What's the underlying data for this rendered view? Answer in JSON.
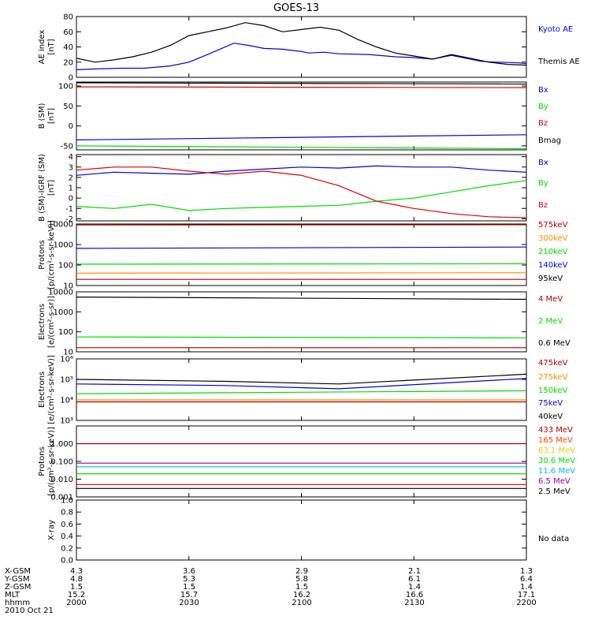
{
  "title": "GOES-13",
  "no_data_label": "No data",
  "orbit": {
    "row_labels": [
      "X-GSM",
      "Y-GSM",
      "Z-GSM",
      "MLT",
      "hhmm"
    ],
    "columns": [
      [
        "4.3",
        "4.8",
        "1.5",
        "15.2",
        "2000"
      ],
      [
        "3.6",
        "5.3",
        "1.5",
        "15.7",
        "2030"
      ],
      [
        "2.9",
        "5.8",
        "1.5",
        "16.2",
        "2100"
      ],
      [
        "2.1",
        "6.1",
        "1.4",
        "16.6",
        "2130"
      ],
      [
        "1.3",
        "6.4",
        "1.4",
        "17.1",
        "2200"
      ]
    ],
    "date": "2010 Oct 21"
  },
  "colors": {
    "black": "#000000",
    "blue": "#0000dd",
    "green": "#00dd00",
    "red": "#dd0000",
    "darkred": "#aa0000",
    "orange": "#ff8c00",
    "yellow": "#d8d800",
    "cyan": "#00b8ff",
    "purple": "#990099"
  },
  "chart_data": [
    {
      "type": "line",
      "id": "ae",
      "ylabel": "AE index\n[nT]",
      "ylim": [
        0,
        80
      ],
      "yticks": [
        "0",
        "20",
        "40",
        "60",
        "80"
      ],
      "yscale": "linear",
      "x_range": [
        "2000",
        "2200"
      ],
      "series": [
        {
          "name": "Kyoto AE",
          "color": "blue",
          "x": [
            0,
            5,
            12,
            18,
            25,
            30,
            35,
            42,
            46,
            50,
            55,
            60,
            62,
            66,
            70,
            78,
            85,
            90,
            95,
            100,
            105,
            108,
            112,
            118,
            120
          ],
          "y": [
            10,
            11,
            12,
            12,
            15,
            20,
            30,
            45,
            42,
            38,
            37,
            34,
            32,
            33,
            31,
            30,
            27,
            26,
            24,
            29,
            24,
            21,
            20,
            19,
            18
          ]
        },
        {
          "name": "Themis AE",
          "color": "black",
          "x": [
            0,
            5,
            10,
            15,
            20,
            25,
            30,
            35,
            40,
            45,
            50,
            55,
            60,
            65,
            70,
            75,
            80,
            85,
            90,
            95,
            100,
            105,
            110,
            115,
            120
          ],
          "y": [
            25,
            20,
            23,
            27,
            33,
            42,
            55,
            60,
            65,
            72,
            68,
            60,
            63,
            66,
            62,
            50,
            40,
            32,
            28,
            24,
            30,
            25,
            20,
            17,
            16
          ]
        }
      ]
    },
    {
      "type": "line",
      "id": "bsm",
      "ylabel": "B (SM)\n[nT]",
      "ylim": [
        -60,
        110
      ],
      "yticks": [
        "-50",
        "0",
        "50",
        "100"
      ],
      "yscale": "linear",
      "series": [
        {
          "name": "Bx",
          "color": "blue",
          "x": [
            0,
            120
          ],
          "y": [
            -35,
            -22
          ]
        },
        {
          "name": "By",
          "color": "green",
          "x": [
            0,
            120
          ],
          "y": [
            -50,
            -57
          ]
        },
        {
          "name": "Bz",
          "color": "red",
          "x": [
            0,
            120
          ],
          "y": [
            98,
            96
          ]
        },
        {
          "name": "Bmag",
          "color": "black",
          "x": [
            0,
            120
          ],
          "y": [
            108,
            105
          ]
        }
      ]
    },
    {
      "type": "line",
      "id": "bigrf",
      "ylabel": "B (SM)-IGRF (SM)\n[nT]",
      "ylim": [
        -2.2,
        4.2
      ],
      "yticks": [
        "-2",
        "-1",
        "0",
        "1",
        "2",
        "3",
        "4"
      ],
      "yscale": "linear",
      "series": [
        {
          "name": "Bx",
          "color": "blue",
          "x": [
            0,
            10,
            20,
            30,
            40,
            50,
            60,
            70,
            80,
            90,
            100,
            110,
            120
          ],
          "y": [
            2.2,
            2.5,
            2.4,
            2.3,
            2.6,
            2.8,
            3.0,
            2.9,
            3.1,
            3.0,
            3.0,
            2.7,
            2.5
          ]
        },
        {
          "name": "By",
          "color": "green",
          "x": [
            0,
            10,
            20,
            30,
            40,
            50,
            60,
            70,
            80,
            90,
            100,
            110,
            120
          ],
          "y": [
            -0.8,
            -1.0,
            -0.6,
            -1.2,
            -1.0,
            -0.9,
            -0.8,
            -0.7,
            -0.3,
            0.0,
            0.6,
            1.2,
            1.7
          ]
        },
        {
          "name": "Bz",
          "color": "red",
          "x": [
            0,
            10,
            20,
            30,
            40,
            50,
            60,
            70,
            80,
            90,
            100,
            110,
            120
          ],
          "y": [
            2.7,
            3.0,
            3.0,
            2.6,
            2.3,
            2.6,
            2.2,
            1.2,
            -0.3,
            -1.0,
            -1.5,
            -1.8,
            -1.9
          ]
        }
      ]
    },
    {
      "type": "line",
      "id": "protons",
      "ylabel": "Protons\n[p/(cm²-s-sr-keV)]",
      "ylim": [
        10,
        10000
      ],
      "yticks": [
        "10",
        "100",
        "1000",
        "10000"
      ],
      "yscale": "log",
      "series": [
        {
          "name": "575keV",
          "color": "darkred",
          "x": [
            0,
            120
          ],
          "y": [
            9000,
            9200
          ]
        },
        {
          "name": "300keV",
          "color": "orange",
          "x": [
            0,
            120
          ],
          "y": [
            40,
            42
          ]
        },
        {
          "name": "210keV",
          "color": "green",
          "x": [
            0,
            120
          ],
          "y": [
            110,
            115
          ]
        },
        {
          "name": "140keV",
          "color": "blue",
          "x": [
            0,
            120
          ],
          "y": [
            650,
            750
          ]
        },
        {
          "name": "95keV",
          "color": "darkred",
          "x": [
            0,
            120
          ],
          "y": [
            20,
            20
          ]
        }
      ]
    },
    {
      "type": "line",
      "id": "electrons1",
      "ylabel": "Electrons\n[e/(cm²-s-sr)]",
      "ylim": [
        10,
        10000
      ],
      "yticks": [
        "10",
        "100",
        "1000",
        "10000"
      ],
      "yscale": "log",
      "series": [
        {
          "name": "4 MeV",
          "color": "darkred",
          "x": [
            0,
            120
          ],
          "y": [
            16,
            16
          ]
        },
        {
          "name": "2 MeV",
          "color": "green",
          "x": [
            0,
            120
          ],
          "y": [
            55,
            50
          ]
        },
        {
          "name": "0.6 MeV",
          "color": "black",
          "x": [
            0,
            120
          ],
          "y": [
            5500,
            4200
          ]
        }
      ]
    },
    {
      "type": "line",
      "id": "electrons2",
      "ylabel": "Electrons\n[e/(cm²-s-sr-keV)]",
      "ylim": [
        1000,
        1000000
      ],
      "yticks": [
        "10³",
        "10⁴",
        "10⁵",
        "10⁶"
      ],
      "yscale": "log",
      "series": [
        {
          "name": "475keV",
          "color": "darkred",
          "x": [
            0,
            120
          ],
          "y": [
            8000,
            8000
          ]
        },
        {
          "name": "275keV",
          "color": "orange",
          "x": [
            0,
            120
          ],
          "y": [
            10000,
            10000
          ]
        },
        {
          "name": "150keV",
          "color": "green",
          "x": [
            0,
            120
          ],
          "y": [
            20000,
            28000
          ]
        },
        {
          "name": "75keV",
          "color": "blue",
          "x": [
            0,
            40,
            70,
            120
          ],
          "y": [
            60000,
            50000,
            35000,
            110000
          ]
        },
        {
          "name": "40keV",
          "color": "black",
          "x": [
            0,
            40,
            70,
            120
          ],
          "y": [
            100000,
            80000,
            60000,
            180000
          ]
        }
      ]
    },
    {
      "type": "line",
      "id": "protons2",
      "ylabel": "Protons\n[p/(cm²-s-sr-keV)]",
      "ylim": [
        0.001,
        10
      ],
      "yticks": [
        "0.001",
        "0.010",
        "0.100",
        "1.000"
      ],
      "yscale": "log",
      "series": [
        {
          "name": "433 MeV",
          "color": "darkred",
          "x": [
            0,
            120
          ],
          "y": [
            1.0,
            1.0
          ]
        },
        {
          "name": "165 MeV",
          "color": "red",
          "x": [
            0,
            120
          ],
          "y": [
            0.005,
            0.005
          ]
        },
        {
          "name": "63.1 MeV",
          "color": "yellow",
          "x": [
            0,
            120
          ],
          "y": [
            0.02,
            0.02
          ]
        },
        {
          "name": "30.6 MeV",
          "color": "green",
          "x": [
            0,
            120
          ],
          "y": [
            0.02,
            0.02
          ]
        },
        {
          "name": "11.6 MeV",
          "color": "cyan",
          "x": [
            0,
            120
          ],
          "y": [
            0.05,
            0.05
          ]
        },
        {
          "name": "6.5 MeV",
          "color": "purple",
          "x": [
            0,
            120
          ],
          "y": [
            0.08,
            0.08
          ]
        },
        {
          "name": "2.5 MeV",
          "color": "black",
          "x": [
            0,
            120
          ],
          "y": [
            0.003,
            0.003
          ]
        }
      ]
    },
    {
      "type": "line",
      "id": "xray",
      "ylabel": "X-ray",
      "ylim": [
        0,
        1.0
      ],
      "yticks": [
        "0.0",
        "0.2",
        "0.4",
        "0.6",
        "0.8",
        "1.0"
      ],
      "yscale": "linear",
      "series": []
    }
  ]
}
